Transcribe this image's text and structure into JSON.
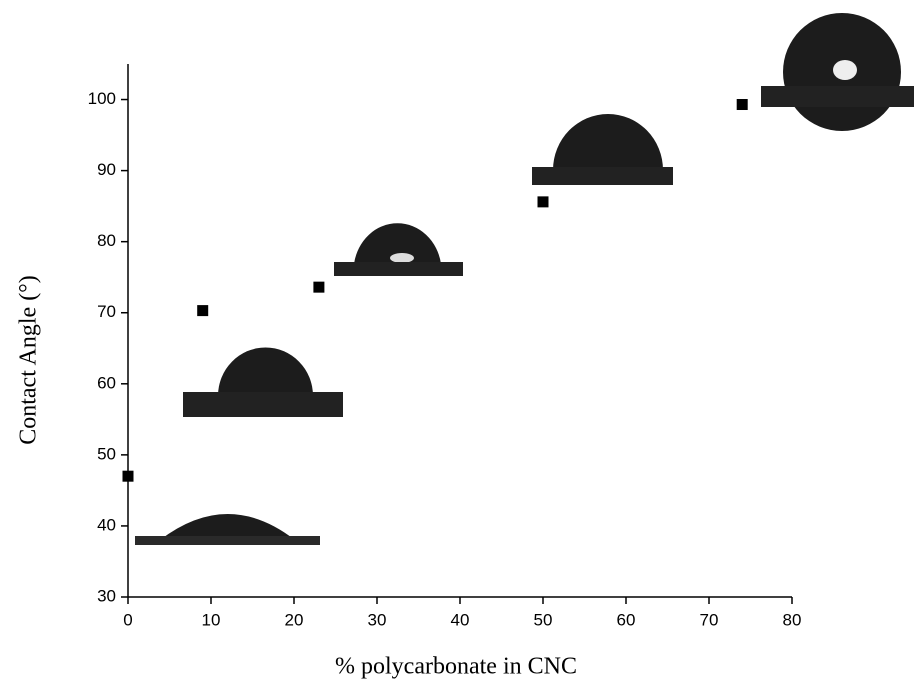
{
  "chart_data": {
    "type": "scatter",
    "x_label": "% polycarbonate in CNC",
    "y_label": "Contact Angle (°)",
    "x": [
      0,
      9,
      23,
      50,
      74
    ],
    "values": [
      47,
      70.3,
      73.6,
      85.6,
      99.3
    ],
    "color": "#000000",
    "xlim": [
      0,
      80
    ],
    "xticks": [
      0,
      10,
      20,
      30,
      40,
      50,
      60,
      70,
      80
    ],
    "ylim": [
      30,
      105
    ],
    "yticks": [
      30,
      40,
      50,
      60,
      70,
      80,
      90,
      100
    ],
    "grid": false
  }
}
